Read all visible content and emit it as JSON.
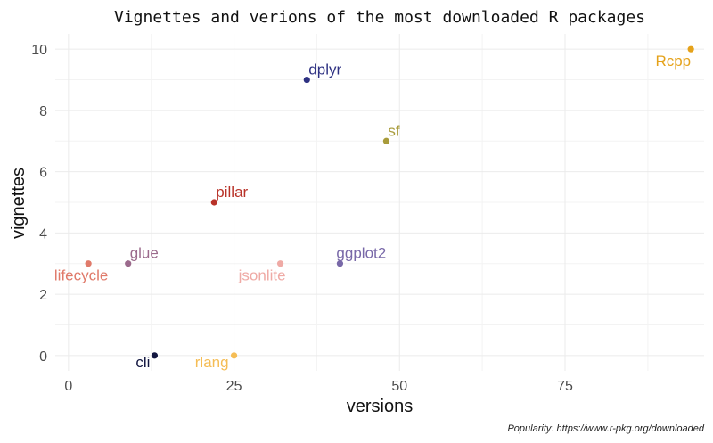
{
  "chart_data": {
    "type": "scatter",
    "title": "Vignettes and verions of the most downloaded R packages",
    "xlabel": "versions",
    "ylabel": "vignettes",
    "caption": "Popularity: https://www.r-pkg.org/downloaded",
    "xlim": [
      -2,
      96
    ],
    "ylim": [
      -0.5,
      10.5
    ],
    "xticks": [
      0,
      25,
      50,
      75
    ],
    "yticks": [
      0,
      2,
      4,
      6,
      8,
      10
    ],
    "grid": true,
    "legend": "none",
    "points": [
      {
        "label": "Rcpp",
        "x": 94,
        "y": 10,
        "color": "#e5a21a",
        "label_pos": "below-left"
      },
      {
        "label": "dplyr",
        "x": 36,
        "y": 9,
        "color": "#2e3182",
        "label_pos": "above-right"
      },
      {
        "label": "sf",
        "x": 48,
        "y": 7,
        "color": "#a89b3a",
        "label_pos": "above-right"
      },
      {
        "label": "pillar",
        "x": 22,
        "y": 5,
        "color": "#b83228",
        "label_pos": "above-right"
      },
      {
        "label": "glue",
        "x": 9,
        "y": 3,
        "color": "#9b6a8c",
        "label_pos": "above-right"
      },
      {
        "label": "lifecycle",
        "x": 3,
        "y": 3,
        "color": "#e07a6a",
        "label_pos": "below"
      },
      {
        "label": "jsonlite",
        "x": 32,
        "y": 3,
        "color": "#efaaa5",
        "label_pos": "below-left"
      },
      {
        "label": "ggplot2",
        "x": 41,
        "y": 3,
        "color": "#7868a8",
        "label_pos": "above"
      },
      {
        "label": "cli",
        "x": 13,
        "y": 0,
        "color": "#121640",
        "label_pos": "below-left"
      },
      {
        "label": "rlang",
        "x": 25,
        "y": 0,
        "color": "#f5bd55",
        "label_pos": "below-left"
      }
    ]
  }
}
